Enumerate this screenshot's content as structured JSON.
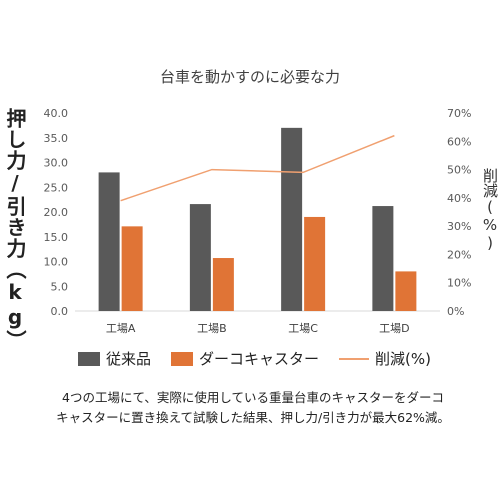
{
  "chart_data": {
    "type": "bar",
    "title": "台車を動かすのに必要な力",
    "ylabel": "押し力/引き力（kg）",
    "y2label": "削減(%)",
    "categories": [
      "工場A",
      "工場B",
      "工場C",
      "工場D"
    ],
    "ylim": [
      0,
      40
    ],
    "yticks": [
      "0.0",
      "5.0",
      "10.0",
      "15.0",
      "20.0",
      "25.0",
      "30.0",
      "35.0",
      "40.0"
    ],
    "y2lim": [
      0,
      70
    ],
    "y2ticks": [
      "0%",
      "10%",
      "20%",
      "30%",
      "40%",
      "50%",
      "60%",
      "70%"
    ],
    "series": [
      {
        "name": "従来品",
        "type": "bar",
        "axis": "left",
        "color": "#595959",
        "values": [
          28.0,
          21.6,
          37.0,
          21.2
        ]
      },
      {
        "name": "ダーコキャスター",
        "type": "bar",
        "axis": "left",
        "color": "#e07436",
        "values": [
          17.1,
          10.7,
          19.0,
          8.0
        ]
      },
      {
        "name": "削減(%)",
        "type": "line",
        "axis": "right",
        "color": "#f0a070",
        "values": [
          39,
          50,
          49,
          62
        ]
      }
    ],
    "grid": false,
    "legend_position": "bottom"
  },
  "caption": {
    "line1": "4つの工場にて、実際に使用している重量台車のキャスターをダーコ",
    "line2": "キャスターに置き換えて試験した結果、押し力/引き力が最大62%減。"
  }
}
